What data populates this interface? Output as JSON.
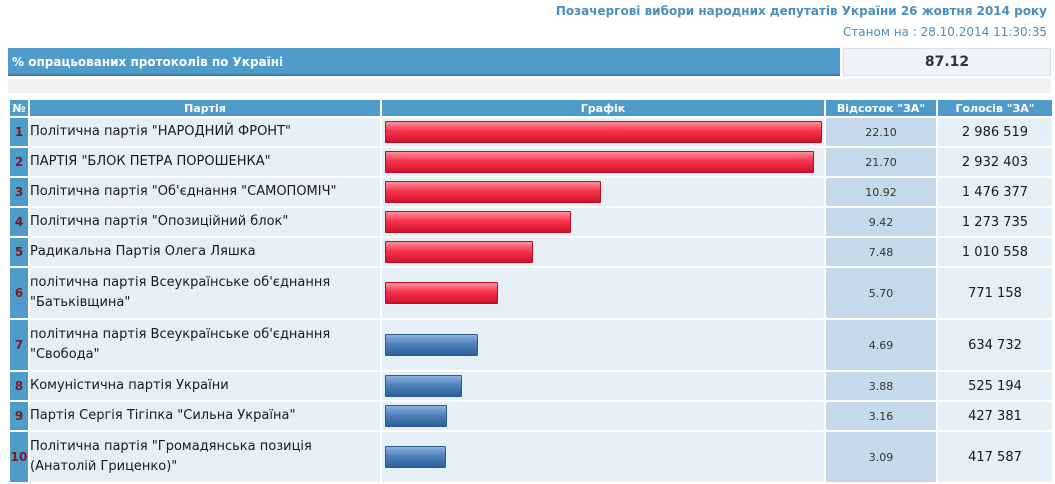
{
  "header": {
    "title": "Позачергові вибори народних депутатів України 26 жовтня 2014 року",
    "status_date": "Станом на : 28.10.2014 11:30:35"
  },
  "summary": {
    "label": "% опрацьованих протоколів по Україні",
    "value": "87.12"
  },
  "table": {
    "columns": [
      "№",
      "Партія",
      "Графік",
      "Відсоток \"ЗА\"",
      "Голосів \"ЗА\""
    ],
    "rows": [
      {
        "num": "1",
        "party": "Політична партія \"НАРОДНИЙ ФРОНТ\"",
        "percent": "22.10",
        "votes": "2 986 519",
        "bar_color": "red"
      },
      {
        "num": "2",
        "party": "ПАРТІЯ \"БЛОК ПЕТРА ПОРОШЕНКА\"",
        "percent": "21.70",
        "votes": "2 932 403",
        "bar_color": "red"
      },
      {
        "num": "3",
        "party": "Політична партія \"Об'єднання \"САМОПОМІЧ\"",
        "percent": "10.92",
        "votes": "1 476 377",
        "bar_color": "red"
      },
      {
        "num": "4",
        "party": "Політична партія \"Опозиційний блок\"",
        "percent": "9.42",
        "votes": "1 273 735",
        "bar_color": "red"
      },
      {
        "num": "5",
        "party": "Радикальна Партія Олега Ляшка",
        "percent": "7.48",
        "votes": "1 010 558",
        "bar_color": "red"
      },
      {
        "num": "6",
        "party": "політична партія Всеукраїнське об'єднання \"Батьківщина\"",
        "percent": "5.70",
        "votes": "771 158",
        "bar_color": "red"
      },
      {
        "num": "7",
        "party": "політична партія Всеукраїнське об'єднання \"Свобода\"",
        "percent": "4.69",
        "votes": "634 732",
        "bar_color": "blue"
      },
      {
        "num": "8",
        "party": "Комуністична партія України",
        "percent": "3.88",
        "votes": "525 194",
        "bar_color": "blue"
      },
      {
        "num": "9",
        "party": "Партія Сергія Тігіпка \"Сильна Україна\"",
        "percent": "3.16",
        "votes": "427 381",
        "bar_color": "blue"
      },
      {
        "num": "10",
        "party": "Політична партія \"Громадянська позиція (Анатолій Гриценко)\"",
        "percent": "3.09",
        "votes": "417 587",
        "bar_color": "blue"
      }
    ]
  },
  "colors": {
    "header_blue": "#4f9bc9",
    "bar_red": "#f6344d",
    "bar_blue": "#4f82bd",
    "title_text": "#4a8fc0"
  }
}
